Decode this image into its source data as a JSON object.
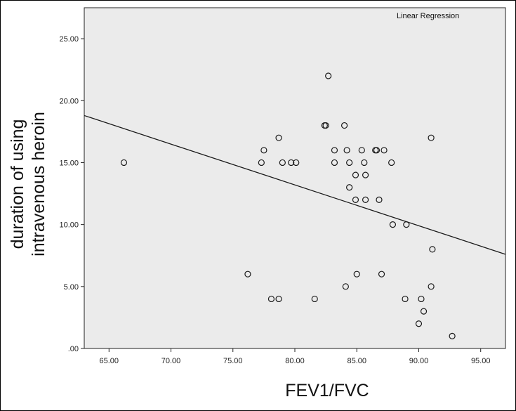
{
  "chart_data": {
    "type": "scatter",
    "title": "",
    "annotation": "Linear Regression",
    "xlabel": "FEV1/FVC",
    "ylabel_lines": [
      "duration of using",
      "intravenous heroin"
    ],
    "xlim": [
      63,
      97
    ],
    "ylim": [
      0,
      27.5
    ],
    "x_ticks": [
      {
        "value": 65,
        "label": "65.00"
      },
      {
        "value": 70,
        "label": "70.00"
      },
      {
        "value": 75,
        "label": "75.00"
      },
      {
        "value": 80,
        "label": "80.00"
      },
      {
        "value": 85,
        "label": "85.00"
      },
      {
        "value": 90,
        "label": "90.00"
      },
      {
        "value": 95,
        "label": "95.00"
      }
    ],
    "y_ticks": [
      {
        "value": 0,
        "label": ".00"
      },
      {
        "value": 5,
        "label": "5.00"
      },
      {
        "value": 10,
        "label": "10.00"
      },
      {
        "value": 15,
        "label": "15.00"
      },
      {
        "value": 20,
        "label": "20.00"
      },
      {
        "value": 25,
        "label": "25.00"
      }
    ],
    "points": [
      {
        "x": 66.2,
        "y": 15
      },
      {
        "x": 76.2,
        "y": 6
      },
      {
        "x": 77.3,
        "y": 15
      },
      {
        "x": 77.5,
        "y": 16
      },
      {
        "x": 78.1,
        "y": 4
      },
      {
        "x": 78.7,
        "y": 17
      },
      {
        "x": 78.7,
        "y": 4
      },
      {
        "x": 79.0,
        "y": 15
      },
      {
        "x": 79.7,
        "y": 15
      },
      {
        "x": 80.1,
        "y": 15
      },
      {
        "x": 81.6,
        "y": 4
      },
      {
        "x": 82.4,
        "y": 18
      },
      {
        "x": 82.5,
        "y": 18
      },
      {
        "x": 82.7,
        "y": 22
      },
      {
        "x": 83.2,
        "y": 16
      },
      {
        "x": 83.2,
        "y": 15
      },
      {
        "x": 84.0,
        "y": 18
      },
      {
        "x": 84.1,
        "y": 5
      },
      {
        "x": 84.2,
        "y": 16
      },
      {
        "x": 84.4,
        "y": 15
      },
      {
        "x": 84.4,
        "y": 13
      },
      {
        "x": 84.9,
        "y": 14
      },
      {
        "x": 84.9,
        "y": 12
      },
      {
        "x": 85.0,
        "y": 6
      },
      {
        "x": 85.4,
        "y": 16
      },
      {
        "x": 85.6,
        "y": 15
      },
      {
        "x": 85.7,
        "y": 14
      },
      {
        "x": 85.7,
        "y": 12
      },
      {
        "x": 86.5,
        "y": 16
      },
      {
        "x": 86.6,
        "y": 16
      },
      {
        "x": 86.8,
        "y": 12
      },
      {
        "x": 87.0,
        "y": 6
      },
      {
        "x": 87.2,
        "y": 16
      },
      {
        "x": 87.8,
        "y": 15
      },
      {
        "x": 87.9,
        "y": 10
      },
      {
        "x": 88.9,
        "y": 4
      },
      {
        "x": 89.0,
        "y": 10
      },
      {
        "x": 90.0,
        "y": 2
      },
      {
        "x": 90.2,
        "y": 4
      },
      {
        "x": 90.4,
        "y": 3
      },
      {
        "x": 91.0,
        "y": 17
      },
      {
        "x": 91.0,
        "y": 5
      },
      {
        "x": 91.1,
        "y": 8
      },
      {
        "x": 92.7,
        "y": 1
      }
    ],
    "regression_line": [
      {
        "x": 63,
        "y": 18.8
      },
      {
        "x": 97,
        "y": 7.6
      }
    ],
    "grid": false,
    "colors": {
      "plot_background": "#ebebeb",
      "marker": "#1a1a1a",
      "line": "#1a1a1a"
    }
  }
}
